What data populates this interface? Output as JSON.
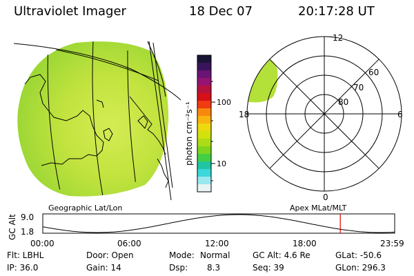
{
  "header": {
    "title": "Ultraviolet Imager",
    "date": "18 Dec 07",
    "time": "20:17:28 UT"
  },
  "colors": {
    "globe_fill": "#b8df35",
    "globe_light": "#d6ec55",
    "polar_fill": "#b4e03a",
    "marker_red": "#e00000"
  },
  "colorbar": {
    "label": "photon cm⁻²s⁻¹",
    "ticks": [
      "100",
      "10"
    ],
    "colors": [
      "#1a1535",
      "#3a145a",
      "#6a1475",
      "#951372",
      "#b8123e",
      "#d61018",
      "#f03c10",
      "#f7880e",
      "#f8b40f",
      "#ecd90f",
      "#d1e20f",
      "#acdc17",
      "#7fd51d",
      "#43cf44",
      "#1fc6a1",
      "#3bd7da",
      "#9ae8ee",
      "#e9f3f4"
    ]
  },
  "labels": {
    "left_projection": "Geographic Lat/Lon",
    "right_projection": "Apex MLat/MLT"
  },
  "polar": {
    "mlt_labels": {
      "top": "12",
      "left": "18",
      "right": "6",
      "bottom": "0"
    },
    "lat_labels": [
      "60",
      "70",
      "80"
    ]
  },
  "timeline": {
    "ylabel": "GC Alt",
    "ytick_top": "9.0",
    "ytick_bottom": "1.8",
    "x_ticks": [
      "00:00",
      "06:00",
      "12:00",
      "18:00",
      "23:59"
    ],
    "marker_time_hours": 20.29
  },
  "info": {
    "row1": {
      "flt": "Flt: LBHL",
      "door": "Door: Open",
      "mode_label": "Mode:",
      "mode_value": "Normal",
      "gcalt": "GC Alt: 4.6 Re",
      "glat": "GLat: -50.6"
    },
    "row2": {
      "ip": "IP: 36.0",
      "gain": "Gain: 14",
      "dsp_label": "Dsp:",
      "dsp_value": "8.3",
      "seq": "Seq: 39",
      "glon": "GLon: 296.3"
    }
  }
}
